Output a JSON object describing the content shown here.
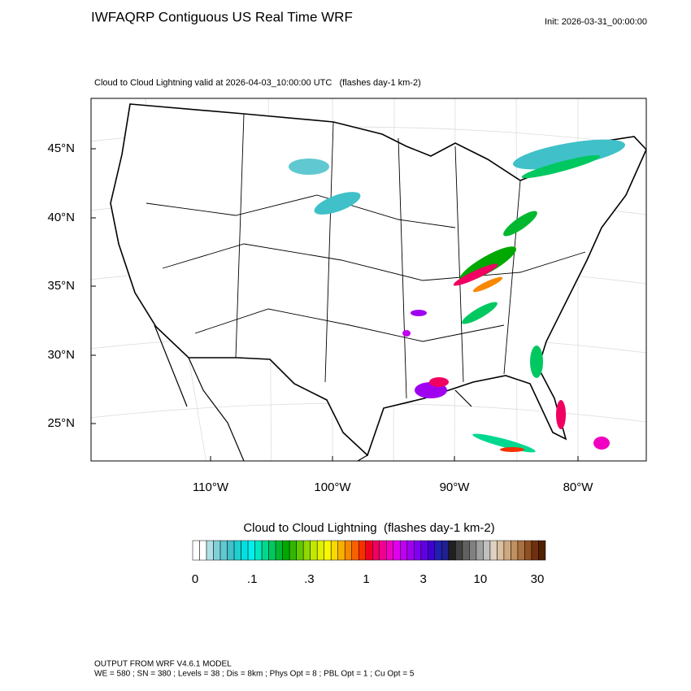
{
  "header": {
    "title": "IWFAQRP Contiguous US Real Time WRF",
    "init": "Init: 2026-03-31_00:00:00",
    "subtitle": "Cloud to Cloud Lightning valid at 2026-04-03_10:00:00 UTC   (flashes day-1 km-2)"
  },
  "map": {
    "lat_labels": [
      "45°N",
      "40°N",
      "35°N",
      "30°N",
      "25°N"
    ],
    "lon_labels": [
      "110°W",
      "100°W",
      "90°W",
      "80°W"
    ]
  },
  "colorbar": {
    "title": "Cloud to Cloud Lightning  (flashes day-1 km-2)",
    "labels": [
      "0",
      ".1",
      ".3",
      "1",
      "3",
      "10",
      "30"
    ],
    "colors": [
      "#ffffff",
      "#ffffff",
      "#b0e0e6",
      "#80d0d8",
      "#60c8d0",
      "#40c0c8",
      "#20d0d0",
      "#00e0e0",
      "#00f0f0",
      "#00e8c0",
      "#00d890",
      "#00c860",
      "#00b830",
      "#00a800",
      "#30b800",
      "#60c800",
      "#90d800",
      "#c0e800",
      "#e0f000",
      "#f8f800",
      "#f8d800",
      "#f8b000",
      "#f88800",
      "#f86000",
      "#f83000",
      "#f00020",
      "#f00060",
      "#f00090",
      "#f000c0",
      "#e000f0",
      "#c000f0",
      "#a000f0",
      "#8000f0",
      "#6000e0",
      "#4000d0",
      "#2020b0",
      "#202090",
      "#202020",
      "#404040",
      "#606060",
      "#808080",
      "#a0a0a0",
      "#c0c0c0",
      "#e0d0c0",
      "#d8c0a0",
      "#d0a880",
      "#c09060",
      "#a87040",
      "#905020",
      "#703010",
      "#502000"
    ]
  },
  "footer": {
    "line1": "OUTPUT FROM WRF V4.6.1 MODEL",
    "line2": "WE = 580 ; SN = 380 ; Levels = 38 ; Dis = 8km ; Phys Opt = 8 ; PBL Opt = 1 ; Cu Opt = 5"
  }
}
